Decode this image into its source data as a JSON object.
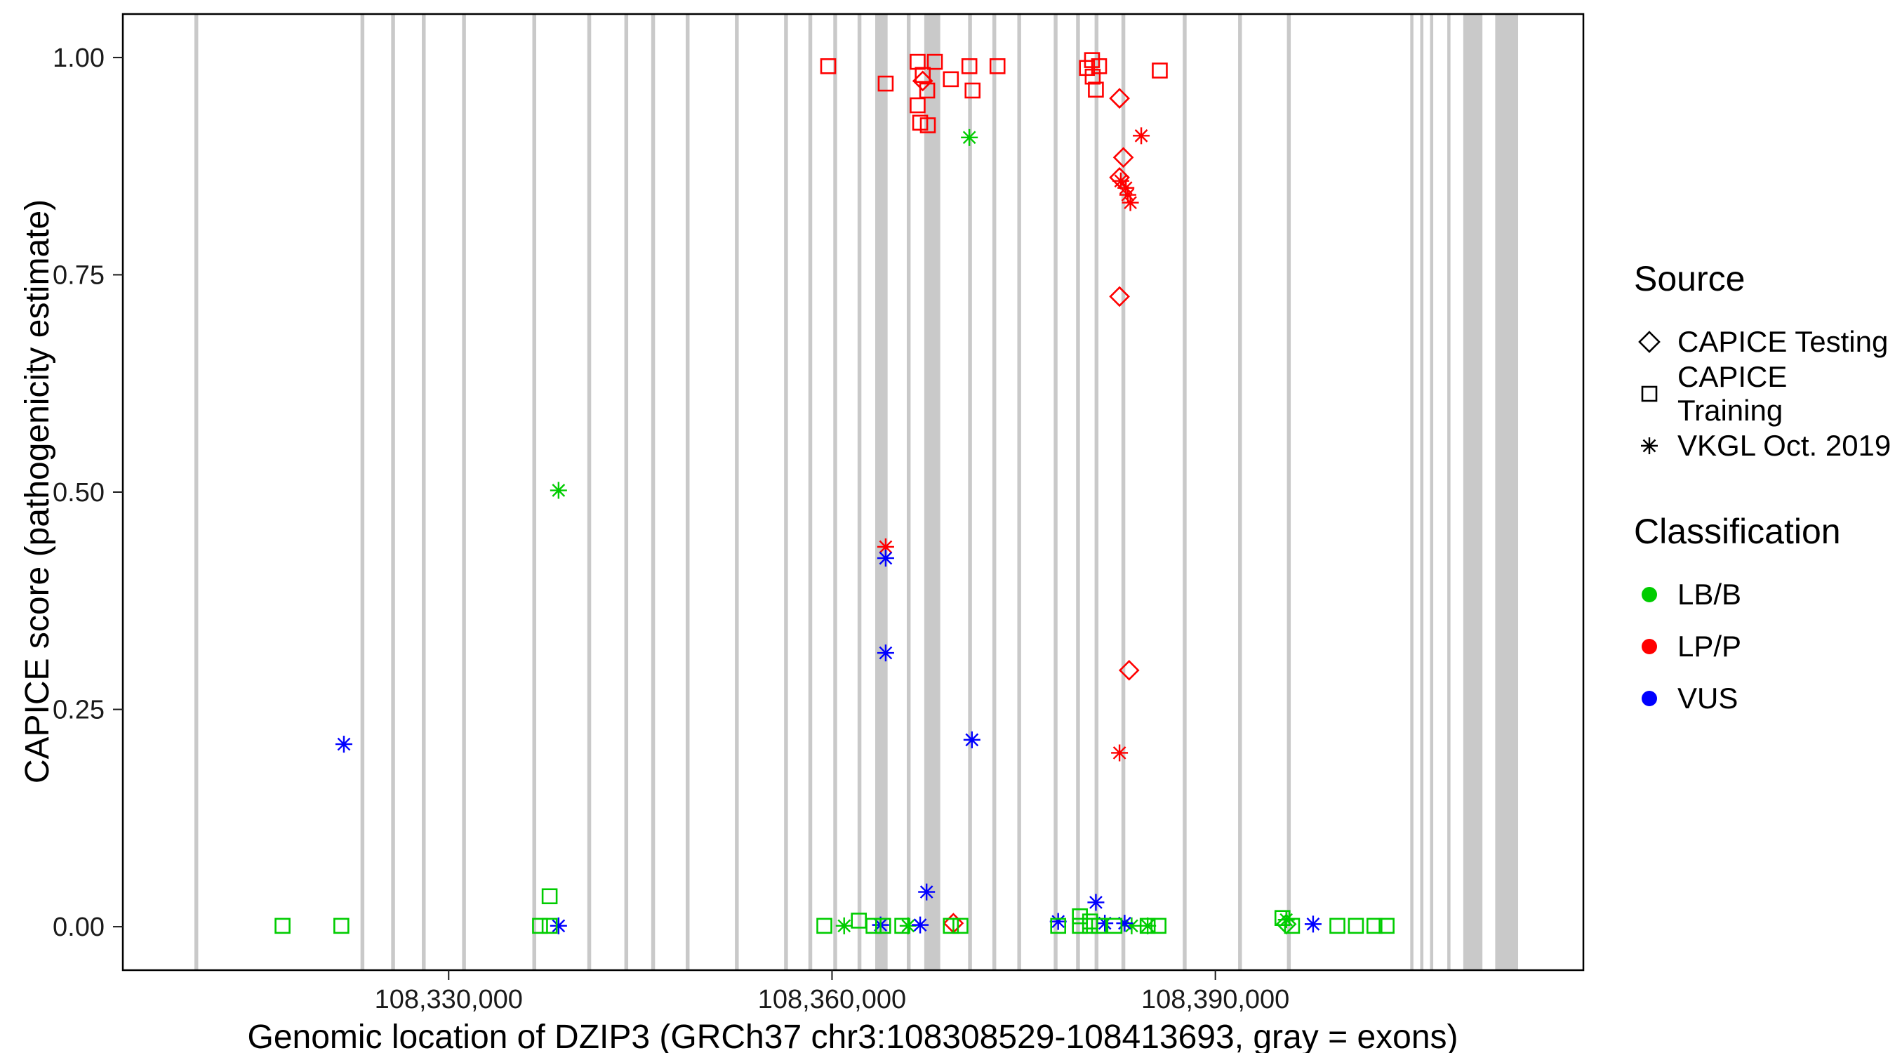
{
  "legend": {
    "source": {
      "title": "Source",
      "items": [
        {
          "label": "CAPICE Testing",
          "shape": "diamond"
        },
        {
          "label": "CAPICE Training",
          "shape": "square"
        },
        {
          "label": "VKGL Oct. 2019",
          "shape": "asterisk"
        }
      ]
    },
    "classification": {
      "title": "Classification",
      "items": [
        {
          "label": "LB/B",
          "color": "#00CC00"
        },
        {
          "label": "LP/P",
          "color": "#FF0000"
        },
        {
          "label": "VUS",
          "color": "#0000FF"
        }
      ]
    }
  },
  "chart_data": {
    "type": "scatter",
    "title": "",
    "xlabel": "Genomic location of DZIP3 (GRCh37 chr3:108308529-108413693, gray = exons)",
    "ylabel": "CAPICE score (pathogenicity estimate)",
    "gene_region": {
      "assembly": "GRCh37",
      "chrom": "chr3",
      "start": 108308529,
      "end": 108413693
    },
    "x_domain": [
      108304500,
      108418800
    ],
    "y_domain": [
      -0.05,
      1.05
    ],
    "x_ticks": [
      {
        "value": 108330000,
        "label": "108,330,000"
      },
      {
        "value": 108360000,
        "label": "108,360,000"
      },
      {
        "value": 108390000,
        "label": "108,390,000"
      }
    ],
    "y_ticks": [
      {
        "value": 0.0,
        "label": "0.00"
      },
      {
        "value": 0.25,
        "label": "0.25"
      },
      {
        "value": 0.5,
        "label": "0.50"
      },
      {
        "value": 0.75,
        "label": "0.75"
      },
      {
        "value": 1.0,
        "label": "1.00"
      }
    ],
    "colors": {
      "LB/B": "#00CC00",
      "LP/P": "#FF0000",
      "VUS": "#0000FF",
      "exon": "#C9C9C9",
      "axis": "#1a1a1a"
    },
    "shape_by_source": {
      "testing": "diamond",
      "training": "square",
      "vkgl": "asterisk"
    },
    "exons": [
      [
        108310100,
        108310400
      ],
      [
        108323100,
        108323400
      ],
      [
        108325500,
        108325800
      ],
      [
        108327900,
        108328200
      ],
      [
        108331050,
        108331350
      ],
      [
        108336550,
        108336850
      ],
      [
        108340850,
        108341150
      ],
      [
        108343750,
        108344050
      ],
      [
        108345850,
        108346150
      ],
      [
        108348550,
        108348850
      ],
      [
        108352400,
        108352700
      ],
      [
        108356250,
        108356550
      ],
      [
        108358150,
        108358450
      ],
      [
        108360100,
        108360400
      ],
      [
        108362000,
        108362300
      ],
      [
        108363380,
        108364350
      ],
      [
        108365850,
        108366150
      ],
      [
        108367220,
        108368470
      ],
      [
        108370650,
        108370950
      ],
      [
        108372550,
        108372850
      ],
      [
        108374500,
        108374800
      ],
      [
        108377350,
        108377650
      ],
      [
        108379100,
        108379400
      ],
      [
        108380550,
        108380850
      ],
      [
        108382650,
        108382950
      ],
      [
        108387450,
        108387750
      ],
      [
        108391780,
        108392080
      ],
      [
        108395600,
        108395900
      ],
      [
        108405250,
        108405500
      ],
      [
        108406030,
        108406280
      ],
      [
        108406800,
        108407050
      ],
      [
        108408150,
        108408400
      ],
      [
        108409400,
        108410900
      ],
      [
        108411900,
        108413693
      ]
    ],
    "points": [
      {
        "x": 108359700,
        "y": 0.99,
        "s": "training",
        "c": "LP/P"
      },
      {
        "x": 108364200,
        "y": 0.97,
        "s": "training",
        "c": "LP/P"
      },
      {
        "x": 108366700,
        "y": 0.995,
        "s": "training",
        "c": "LP/P"
      },
      {
        "x": 108367100,
        "y": 0.98,
        "s": "training",
        "c": "LP/P"
      },
      {
        "x": 108367450,
        "y": 0.962,
        "s": "training",
        "c": "LP/P"
      },
      {
        "x": 108366700,
        "y": 0.945,
        "s": "training",
        "c": "LP/P"
      },
      {
        "x": 108366900,
        "y": 0.925,
        "s": "training",
        "c": "LP/P"
      },
      {
        "x": 108367500,
        "y": 0.922,
        "s": "training",
        "c": "LP/P"
      },
      {
        "x": 108368050,
        "y": 0.995,
        "s": "training",
        "c": "LP/P"
      },
      {
        "x": 108369300,
        "y": 0.975,
        "s": "training",
        "c": "LP/P"
      },
      {
        "x": 108370750,
        "y": 0.99,
        "s": "training",
        "c": "LP/P"
      },
      {
        "x": 108371000,
        "y": 0.962,
        "s": "training",
        "c": "LP/P"
      },
      {
        "x": 108372950,
        "y": 0.99,
        "s": "training",
        "c": "LP/P"
      },
      {
        "x": 108379950,
        "y": 0.988,
        "s": "training",
        "c": "LP/P"
      },
      {
        "x": 108380350,
        "y": 0.997,
        "s": "training",
        "c": "LP/P"
      },
      {
        "x": 108380400,
        "y": 0.978,
        "s": "training",
        "c": "LP/P"
      },
      {
        "x": 108380900,
        "y": 0.99,
        "s": "training",
        "c": "LP/P"
      },
      {
        "x": 108380650,
        "y": 0.963,
        "s": "training",
        "c": "LP/P"
      },
      {
        "x": 108385650,
        "y": 0.985,
        "s": "training",
        "c": "LP/P"
      },
      {
        "x": 108367100,
        "y": 0.973,
        "s": "testing",
        "c": "LP/P"
      },
      {
        "x": 108382500,
        "y": 0.953,
        "s": "testing",
        "c": "LP/P"
      },
      {
        "x": 108382800,
        "y": 0.885,
        "s": "testing",
        "c": "LP/P"
      },
      {
        "x": 108382500,
        "y": 0.862,
        "s": "testing",
        "c": "LP/P"
      },
      {
        "x": 108382500,
        "y": 0.725,
        "s": "testing",
        "c": "LP/P"
      },
      {
        "x": 108383250,
        "y": 0.295,
        "s": "testing",
        "c": "LP/P"
      },
      {
        "x": 108369500,
        "y": 0.004,
        "s": "testing",
        "c": "LP/P"
      },
      {
        "x": 108384200,
        "y": 0.91,
        "s": "vkgl",
        "c": "LP/P"
      },
      {
        "x": 108382600,
        "y": 0.858,
        "s": "vkgl",
        "c": "LP/P"
      },
      {
        "x": 108383000,
        "y": 0.85,
        "s": "vkgl",
        "c": "LP/P"
      },
      {
        "x": 108383150,
        "y": 0.842,
        "s": "vkgl",
        "c": "LP/P"
      },
      {
        "x": 108383350,
        "y": 0.833,
        "s": "vkgl",
        "c": "LP/P"
      },
      {
        "x": 108382500,
        "y": 0.2,
        "s": "vkgl",
        "c": "LP/P"
      },
      {
        "x": 108364200,
        "y": 0.437,
        "s": "vkgl",
        "c": "LP/P"
      },
      {
        "x": 108370750,
        "y": 0.908,
        "s": "vkgl",
        "c": "LB/B"
      },
      {
        "x": 108338600,
        "y": 0.502,
        "s": "vkgl",
        "c": "LB/B"
      },
      {
        "x": 108360950,
        "y": 0.001,
        "s": "vkgl",
        "c": "LB/B"
      },
      {
        "x": 108365950,
        "y": 0.001,
        "s": "vkgl",
        "c": "LB/B"
      },
      {
        "x": 108383450,
        "y": 0.001,
        "s": "vkgl",
        "c": "LB/B"
      },
      {
        "x": 108384700,
        "y": 0.001,
        "s": "vkgl",
        "c": "LB/B"
      },
      {
        "x": 108395550,
        "y": 0.008,
        "s": "vkgl",
        "c": "LB/B"
      },
      {
        "x": 108321800,
        "y": 0.21,
        "s": "vkgl",
        "c": "VUS"
      },
      {
        "x": 108364200,
        "y": 0.424,
        "s": "vkgl",
        "c": "VUS"
      },
      {
        "x": 108364200,
        "y": 0.315,
        "s": "vkgl",
        "c": "VUS"
      },
      {
        "x": 108370950,
        "y": 0.215,
        "s": "vkgl",
        "c": "VUS"
      },
      {
        "x": 108367400,
        "y": 0.04,
        "s": "vkgl",
        "c": "VUS"
      },
      {
        "x": 108380650,
        "y": 0.028,
        "s": "vkgl",
        "c": "VUS"
      },
      {
        "x": 108338600,
        "y": 0.001,
        "s": "vkgl",
        "c": "VUS"
      },
      {
        "x": 108363800,
        "y": 0.002,
        "s": "vkgl",
        "c": "VUS"
      },
      {
        "x": 108366900,
        "y": 0.002,
        "s": "vkgl",
        "c": "VUS"
      },
      {
        "x": 108377700,
        "y": 0.006,
        "s": "vkgl",
        "c": "VUS"
      },
      {
        "x": 108381350,
        "y": 0.004,
        "s": "vkgl",
        "c": "VUS"
      },
      {
        "x": 108382900,
        "y": 0.004,
        "s": "vkgl",
        "c": "VUS"
      },
      {
        "x": 108397650,
        "y": 0.003,
        "s": "vkgl",
        "c": "VUS"
      },
      {
        "x": 108317000,
        "y": 0.001,
        "s": "training",
        "c": "LB/B"
      },
      {
        "x": 108321600,
        "y": 0.001,
        "s": "training",
        "c": "LB/B"
      },
      {
        "x": 108337900,
        "y": 0.035,
        "s": "training",
        "c": "LB/B"
      },
      {
        "x": 108337150,
        "y": 0.001,
        "s": "training",
        "c": "LB/B"
      },
      {
        "x": 108337900,
        "y": 0.001,
        "s": "training",
        "c": "LB/B"
      },
      {
        "x": 108359400,
        "y": 0.001,
        "s": "training",
        "c": "LB/B"
      },
      {
        "x": 108362100,
        "y": 0.007,
        "s": "training",
        "c": "LB/B"
      },
      {
        "x": 108363250,
        "y": 0.001,
        "s": "training",
        "c": "LB/B"
      },
      {
        "x": 108364000,
        "y": 0.001,
        "s": "training",
        "c": "LB/B"
      },
      {
        "x": 108365500,
        "y": 0.001,
        "s": "training",
        "c": "LB/B"
      },
      {
        "x": 108369300,
        "y": 0.001,
        "s": "training",
        "c": "LB/B"
      },
      {
        "x": 108370050,
        "y": 0.001,
        "s": "training",
        "c": "LB/B"
      },
      {
        "x": 108377700,
        "y": 0.001,
        "s": "training",
        "c": "LB/B"
      },
      {
        "x": 108379400,
        "y": 0.012,
        "s": "training",
        "c": "LB/B"
      },
      {
        "x": 108380200,
        "y": 0.006,
        "s": "training",
        "c": "LB/B"
      },
      {
        "x": 108379400,
        "y": 0.001,
        "s": "training",
        "c": "LB/B"
      },
      {
        "x": 108380200,
        "y": 0.001,
        "s": "training",
        "c": "LB/B"
      },
      {
        "x": 108380900,
        "y": 0.001,
        "s": "training",
        "c": "LB/B"
      },
      {
        "x": 108382100,
        "y": 0.001,
        "s": "training",
        "c": "LB/B"
      },
      {
        "x": 108384700,
        "y": 0.001,
        "s": "training",
        "c": "LB/B"
      },
      {
        "x": 108385550,
        "y": 0.001,
        "s": "training",
        "c": "LB/B"
      },
      {
        "x": 108395250,
        "y": 0.01,
        "s": "training",
        "c": "LB/B"
      },
      {
        "x": 108396000,
        "y": 0.001,
        "s": "training",
        "c": "LB/B"
      },
      {
        "x": 108399550,
        "y": 0.001,
        "s": "training",
        "c": "LB/B"
      },
      {
        "x": 108401000,
        "y": 0.001,
        "s": "training",
        "c": "LB/B"
      },
      {
        "x": 108402450,
        "y": 0.001,
        "s": "training",
        "c": "LB/B"
      },
      {
        "x": 108403400,
        "y": 0.001,
        "s": "training",
        "c": "LB/B"
      },
      {
        "x": 108395550,
        "y": 0.003,
        "s": "testing",
        "c": "LB/B"
      }
    ]
  }
}
